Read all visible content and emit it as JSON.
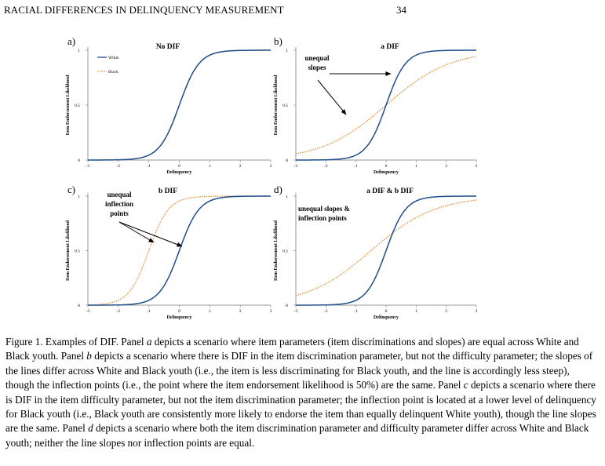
{
  "header": {
    "running_head": "RACIAL DIFFERENCES IN DELINQUENCY MEASUREMENT",
    "page_number": "34"
  },
  "colors": {
    "white": "#1f4e8c",
    "black": "#e08a2e",
    "axis": "#999999",
    "text": "#000000"
  },
  "panels": [
    {
      "id": "a",
      "label": "a)",
      "title": "No DIF",
      "ylabel": "Item Endorsement Likelihood",
      "xlabel": "Delinquency",
      "legend": [
        {
          "name": "White",
          "style": "solid"
        },
        {
          "name": "Black",
          "style": "dotted"
        }
      ],
      "annotation": [],
      "series": [
        {
          "name": "White",
          "a": 1.8,
          "b": 0
        },
        {
          "name": "Black",
          "a": 1.8,
          "b": 0
        }
      ]
    },
    {
      "id": "b",
      "label": "b)",
      "title": "a DIF",
      "ylabel": "Item Endorsement Likelihood",
      "xlabel": "Delinquency",
      "legend": [],
      "annotation": [
        "unequal",
        "slopes"
      ],
      "series": [
        {
          "name": "White",
          "a": 1.8,
          "b": 0
        },
        {
          "name": "Black",
          "a": 0.55,
          "b": 0
        }
      ]
    },
    {
      "id": "c",
      "label": "c)",
      "title": "b DIF",
      "ylabel": "Item Endorsement Likelihood",
      "xlabel": "Delinquency",
      "legend": [],
      "annotation": [
        "unequal",
        "inflection",
        "points"
      ],
      "series": [
        {
          "name": "White",
          "a": 1.8,
          "b": 0
        },
        {
          "name": "Black",
          "a": 1.8,
          "b": -1
        }
      ]
    },
    {
      "id": "d",
      "label": "d)",
      "title": "a DIF & b DIF",
      "ylabel": "Item Endorsement Likelihood",
      "xlabel": "Delinquency",
      "legend": [],
      "annotation": [
        "unequal slopes &",
        "inflection points"
      ],
      "series": [
        {
          "name": "White",
          "a": 1.8,
          "b": 0
        },
        {
          "name": "Black",
          "a": 0.55,
          "b": -0.5
        }
      ]
    }
  ],
  "chart_data": [
    {
      "type": "line",
      "title": "No DIF",
      "xlabel": "Delinquency",
      "ylabel": "Item Endorsement Likelihood",
      "x_ticks": [
        "-3",
        "-2",
        "-1",
        "0",
        "1",
        "2",
        "3"
      ],
      "y_ticks": [
        "0",
        "0.5",
        "1"
      ],
      "xlim": [
        -3,
        3
      ],
      "ylim": [
        0,
        1
      ],
      "legend": [
        "White",
        "Black"
      ],
      "series": [
        {
          "name": "White",
          "a": 1.8,
          "b": 0
        },
        {
          "name": "Black",
          "a": 1.8,
          "b": 0
        }
      ]
    },
    {
      "type": "line",
      "title": "a DIF",
      "xlabel": "Delinquency",
      "ylabel": "Item Endorsement Likelihood",
      "x_ticks": [
        "-3",
        "-2",
        "-1",
        "0",
        "1",
        "2",
        "3"
      ],
      "y_ticks": [
        "0",
        "0.5",
        "1"
      ],
      "xlim": [
        -3,
        3
      ],
      "ylim": [
        0,
        1
      ],
      "series": [
        {
          "name": "White",
          "a": 1.8,
          "b": 0
        },
        {
          "name": "Black",
          "a": 0.55,
          "b": 0
        }
      ]
    },
    {
      "type": "line",
      "title": "b DIF",
      "xlabel": "Delinquency",
      "ylabel": "Item Endorsement Likelihood",
      "x_ticks": [
        "-3",
        "-2",
        "-1",
        "0",
        "1",
        "2",
        "3"
      ],
      "y_ticks": [
        "0",
        "0.5",
        "1"
      ],
      "xlim": [
        -3,
        3
      ],
      "ylim": [
        0,
        1
      ],
      "series": [
        {
          "name": "White",
          "a": 1.8,
          "b": 0
        },
        {
          "name": "Black",
          "a": 1.8,
          "b": -1
        }
      ]
    },
    {
      "type": "line",
      "title": "a DIF & b DIF",
      "xlabel": "Delinquency",
      "ylabel": "Item Endorsement Likelihood",
      "x_ticks": [
        "-3",
        "-2",
        "-1",
        "0",
        "1",
        "2",
        "3"
      ],
      "y_ticks": [
        "0",
        "0.5",
        "1"
      ],
      "xlim": [
        -3,
        3
      ],
      "ylim": [
        0,
        1
      ],
      "series": [
        {
          "name": "White",
          "a": 1.8,
          "b": 0
        },
        {
          "name": "Black",
          "a": 0.55,
          "b": -0.5
        }
      ]
    }
  ],
  "axes": {
    "x_ticks": [
      "-3",
      "-2",
      "-1",
      "0",
      "1",
      "2",
      "3"
    ],
    "y_ticks": [
      "0",
      "0.5",
      "1"
    ]
  },
  "caption": {
    "lead": "Figure 1. Examples of DIF. Panel ",
    "a_letter": "a",
    "a_text": " depicts a scenario where item parameters (item discriminations and slopes) are equal across White and Black youth. Panel ",
    "b_letter": "b",
    "b_text": " depicts a scenario where there is DIF in the item discrimination parameter, but not the difficulty parameter; the slopes of the lines differ across White and Black youth (i.e., the item is less discriminating for Black youth, and the line is accordingly less steep), though the inflection points (i.e., the point where the item endorsement likelihood is 50%) are the same. Panel ",
    "c_letter": "c",
    "c_text": " depicts a scenario where there is DIF in the item difficulty parameter, but not the item discrimination parameter; the inflection point is located at a lower level of delinquency for Black youth (i.e., Black youth are consistently more likely to endorse the item than equally delinquent White youth), though the line slopes are the same. Panel ",
    "d_letter": "d",
    "d_text": " depicts a scenario where both the item discrimination parameter and difficulty parameter differ across White and Black youth; neither the line slopes nor inflection points are equal."
  }
}
